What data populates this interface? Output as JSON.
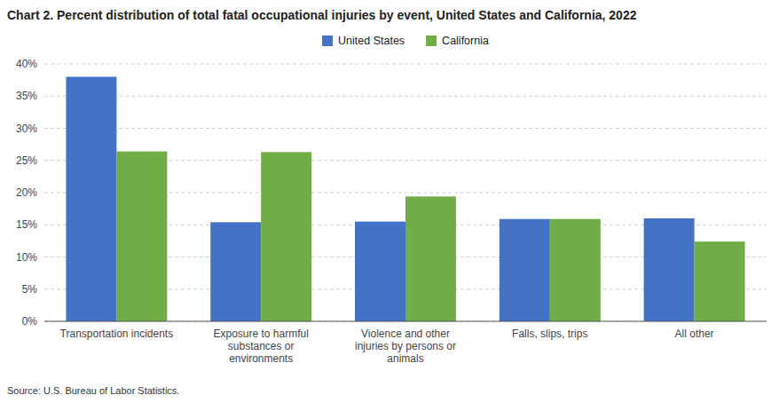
{
  "chart_data": {
    "type": "bar",
    "title": "Chart 2. Percent distribution of total fatal occupational injuries by event, United States and California, 2022",
    "categories": [
      "Transportation incidents",
      "Exposure to harmful\nsubstances or\nenvironments",
      "Violence and other\ninjuries by persons or\nanimals",
      "Falls, slips, trips",
      "All other"
    ],
    "series": [
      {
        "name": "United States",
        "color": "#4472C4",
        "values": [
          38.0,
          15.4,
          15.5,
          15.9,
          16.0
        ]
      },
      {
        "name": "California",
        "color": "#70AD47",
        "values": [
          26.4,
          26.3,
          19.4,
          15.9,
          12.4
        ]
      }
    ],
    "ylim": [
      0,
      40
    ],
    "yticks": [
      {
        "value": 0,
        "label": "0%"
      },
      {
        "value": 5,
        "label": "5%"
      },
      {
        "value": 10,
        "label": "10%"
      },
      {
        "value": 15,
        "label": "15%"
      },
      {
        "value": 20,
        "label": "20%"
      },
      {
        "value": 25,
        "label": "25%"
      },
      {
        "value": 30,
        "label": "30%"
      },
      {
        "value": 35,
        "label": "35%"
      },
      {
        "value": 40,
        "label": "40%"
      }
    ],
    "grid": true,
    "legend": "top",
    "annotations": [
      "Source: U.S. Bureau of Labor Statistics."
    ]
  }
}
